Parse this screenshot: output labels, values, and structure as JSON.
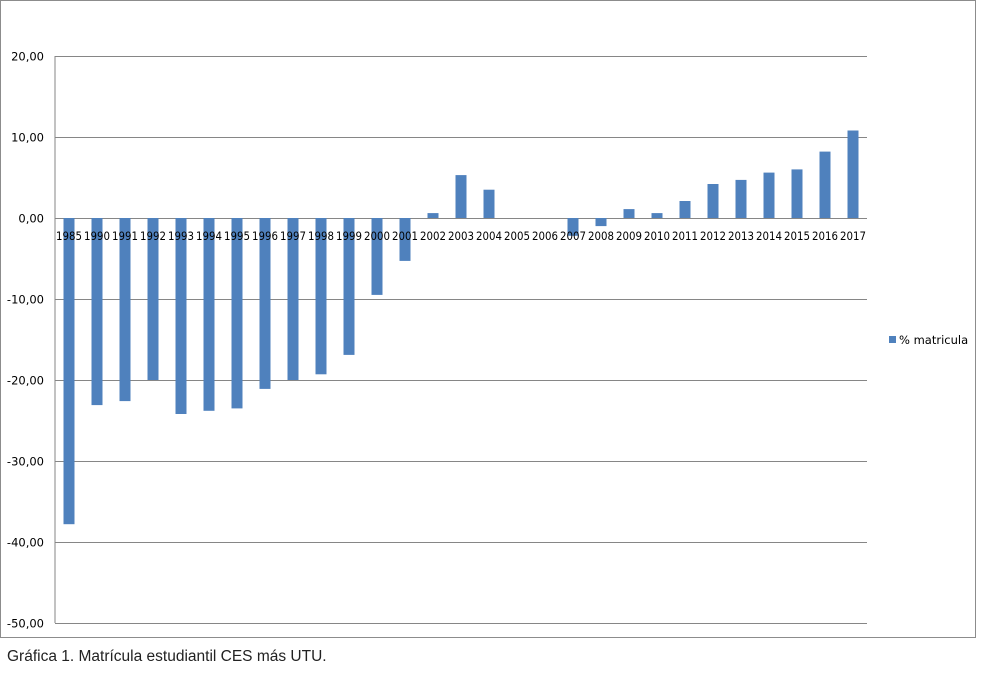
{
  "caption": "Gráfica 1. Matrícula estudiantil CES más UTU.",
  "chart_data": {
    "type": "bar",
    "ylim": [
      -50,
      20
    ],
    "yticks": [
      20,
      10,
      0,
      -10,
      -20,
      -30,
      -40,
      -50
    ],
    "ytick_labels": [
      "20,00",
      "10,00",
      "0,00",
      "-10,00",
      "-20,00",
      "-30,00",
      "-40,00",
      "-50,00"
    ],
    "grid": true,
    "legend_position": "right",
    "bar_color": "#4f81bd",
    "categories": [
      "1985",
      "1990",
      "1991",
      "1992",
      "1993",
      "1994",
      "1995",
      "1996",
      "1997",
      "1998",
      "1999",
      "2000",
      "2001",
      "2002",
      "2003",
      "2004",
      "2005",
      "2006",
      "2007",
      "2008",
      "2009",
      "2010",
      "2011",
      "2012",
      "2013",
      "2014",
      "2015",
      "2016",
      "2017"
    ],
    "series": [
      {
        "name": "% matricula",
        "values": [
          -37.8,
          -23.1,
          -22.6,
          -20.0,
          -24.2,
          -23.8,
          -23.5,
          -21.1,
          -20.0,
          -19.3,
          -16.9,
          -9.5,
          -5.3,
          0.6,
          5.3,
          3.5,
          0,
          0,
          -2.2,
          -1.0,
          1.1,
          0.6,
          2.1,
          4.2,
          4.7,
          5.6,
          6.0,
          8.2,
          10.8
        ]
      }
    ]
  }
}
